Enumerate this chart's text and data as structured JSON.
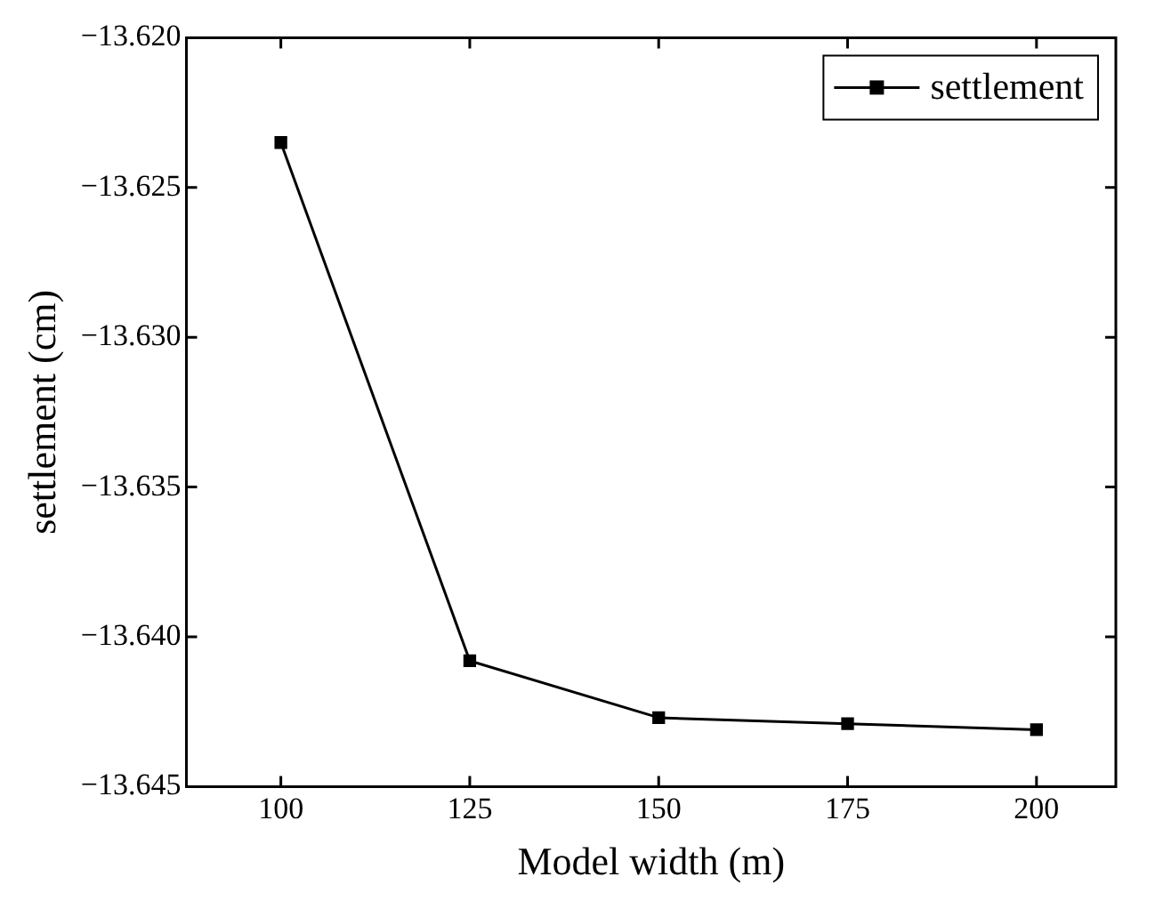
{
  "chart_data": {
    "type": "line",
    "xlabel": "Model width (m)",
    "ylabel": "settlement (cm)",
    "x": [
      100,
      125,
      150,
      175,
      200
    ],
    "series": [
      {
        "name": "settlement",
        "color": "#000000",
        "values": [
          -13.6235,
          -13.6408,
          -13.6427,
          -13.6429,
          -13.6431
        ]
      }
    ],
    "xlim": [
      87.5,
      210.5
    ],
    "xticks": [
      100,
      125,
      150,
      175,
      200
    ],
    "ylim": [
      -13.645,
      -13.62
    ],
    "yticks": [
      {
        "value": -13.645,
        "label": "−13.645"
      },
      {
        "value": -13.64,
        "label": "−13.640"
      },
      {
        "value": -13.635,
        "label": "−13.635"
      },
      {
        "value": -13.63,
        "label": "−13.630"
      },
      {
        "value": -13.625,
        "label": "−13.625"
      },
      {
        "value": -13.62,
        "label": "−13.620"
      }
    ],
    "grid": false,
    "legend": "top right",
    "marker": "square",
    "line_style": "solid"
  }
}
